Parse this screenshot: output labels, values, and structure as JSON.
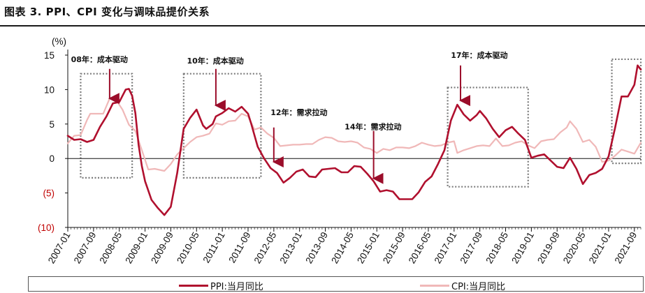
{
  "figure_title": "图表 3. PPI、CPI 变化与调味品提价关系",
  "chart_data": {
    "type": "line",
    "title": "图表 3. PPI、CPI 变化与调味品提价关系",
    "ylabel": "(%)",
    "ylim": [
      -10,
      15
    ],
    "yticks": [
      {
        "value": 15,
        "label": "15"
      },
      {
        "value": 10,
        "label": "10"
      },
      {
        "value": 5,
        "label": "5"
      },
      {
        "value": 0,
        "label": "0"
      },
      {
        "value": -5,
        "label": "(5)"
      },
      {
        "value": -10,
        "label": "(10)"
      }
    ],
    "x_start": "2007-01",
    "x_end": "2021-11",
    "xticks": [
      "2007-01",
      "2007-09",
      "2008-05",
      "2009-01",
      "2009-09",
      "2010-05",
      "2011-01",
      "2011-09",
      "2012-05",
      "2013-01",
      "2013-09",
      "2014-05",
      "2015-01",
      "2015-09",
      "2016-05",
      "2017-01",
      "2017-09",
      "2018-05",
      "2019-01",
      "2019-09",
      "2020-05",
      "2021-01",
      "2021-09"
    ],
    "series": [
      {
        "name": "PPI:当月同比",
        "color": "#b0102e",
        "points": [
          [
            "2007-01",
            3.3
          ],
          [
            "2007-03",
            2.7
          ],
          [
            "2007-05",
            2.8
          ],
          [
            "2007-07",
            2.4
          ],
          [
            "2007-09",
            2.7
          ],
          [
            "2007-11",
            4.6
          ],
          [
            "2008-01",
            6.1
          ],
          [
            "2008-03",
            8.0
          ],
          [
            "2008-05",
            8.2
          ],
          [
            "2008-07",
            10.0
          ],
          [
            "2008-08",
            10.1
          ],
          [
            "2008-09",
            9.1
          ],
          [
            "2008-10",
            6.6
          ],
          [
            "2008-11",
            2.0
          ],
          [
            "2008-12",
            -1.1
          ],
          [
            "2009-01",
            -3.3
          ],
          [
            "2009-03",
            -6.0
          ],
          [
            "2009-05",
            -7.2
          ],
          [
            "2009-07",
            -8.2
          ],
          [
            "2009-09",
            -7.0
          ],
          [
            "2009-11",
            -2.1
          ],
          [
            "2010-01",
            4.3
          ],
          [
            "2010-03",
            5.9
          ],
          [
            "2010-05",
            7.1
          ],
          [
            "2010-07",
            4.8
          ],
          [
            "2010-08",
            4.3
          ],
          [
            "2010-10",
            5.0
          ],
          [
            "2010-11",
            6.1
          ],
          [
            "2011-01",
            6.6
          ],
          [
            "2011-03",
            7.3
          ],
          [
            "2011-05",
            6.8
          ],
          [
            "2011-07",
            7.5
          ],
          [
            "2011-09",
            6.5
          ],
          [
            "2011-10",
            5.0
          ],
          [
            "2011-12",
            1.7
          ],
          [
            "2012-02",
            0.0
          ],
          [
            "2012-04",
            -1.4
          ],
          [
            "2012-06",
            -2.1
          ],
          [
            "2012-08",
            -3.5
          ],
          [
            "2012-10",
            -2.8
          ],
          [
            "2012-12",
            -1.9
          ],
          [
            "2013-02",
            -1.6
          ],
          [
            "2013-04",
            -2.6
          ],
          [
            "2013-06",
            -2.7
          ],
          [
            "2013-08",
            -1.6
          ],
          [
            "2013-10",
            -1.5
          ],
          [
            "2013-12",
            -1.4
          ],
          [
            "2014-02",
            -2.0
          ],
          [
            "2014-04",
            -2.0
          ],
          [
            "2014-06",
            -1.1
          ],
          [
            "2014-08",
            -1.2
          ],
          [
            "2014-10",
            -2.2
          ],
          [
            "2014-12",
            -3.3
          ],
          [
            "2015-02",
            -4.8
          ],
          [
            "2015-04",
            -4.6
          ],
          [
            "2015-06",
            -4.8
          ],
          [
            "2015-08",
            -5.9
          ],
          [
            "2015-10",
            -5.9
          ],
          [
            "2015-12",
            -5.9
          ],
          [
            "2016-02",
            -4.9
          ],
          [
            "2016-04",
            -3.4
          ],
          [
            "2016-06",
            -2.6
          ],
          [
            "2016-08",
            -0.8
          ],
          [
            "2016-10",
            1.2
          ],
          [
            "2016-12",
            5.5
          ],
          [
            "2017-02",
            7.8
          ],
          [
            "2017-04",
            6.4
          ],
          [
            "2017-06",
            5.5
          ],
          [
            "2017-08",
            6.3
          ],
          [
            "2017-09",
            6.9
          ],
          [
            "2017-11",
            5.8
          ],
          [
            "2018-01",
            4.3
          ],
          [
            "2018-03",
            3.1
          ],
          [
            "2018-05",
            4.1
          ],
          [
            "2018-07",
            4.6
          ],
          [
            "2018-09",
            3.6
          ],
          [
            "2018-11",
            2.7
          ],
          [
            "2019-01",
            0.1
          ],
          [
            "2019-03",
            0.4
          ],
          [
            "2019-05",
            0.6
          ],
          [
            "2019-07",
            -0.3
          ],
          [
            "2019-09",
            -1.2
          ],
          [
            "2019-11",
            -1.4
          ],
          [
            "2020-01",
            0.1
          ],
          [
            "2020-03",
            -1.5
          ],
          [
            "2020-05",
            -3.7
          ],
          [
            "2020-07",
            -2.4
          ],
          [
            "2020-09",
            -2.1
          ],
          [
            "2020-11",
            -1.5
          ],
          [
            "2021-01",
            0.3
          ],
          [
            "2021-03",
            4.4
          ],
          [
            "2021-05",
            9.0
          ],
          [
            "2021-07",
            9.0
          ],
          [
            "2021-09",
            10.7
          ],
          [
            "2021-10",
            13.5
          ],
          [
            "2021-11",
            12.9
          ]
        ]
      },
      {
        "name": "CPI:当月同比",
        "color": "#f0b8b8",
        "points": [
          [
            "2007-01",
            2.2
          ],
          [
            "2007-03",
            3.3
          ],
          [
            "2007-05",
            3.4
          ],
          [
            "2007-07",
            5.6
          ],
          [
            "2007-08",
            6.5
          ],
          [
            "2007-10",
            6.5
          ],
          [
            "2007-12",
            6.5
          ],
          [
            "2008-02",
            8.7
          ],
          [
            "2008-04",
            8.5
          ],
          [
            "2008-06",
            7.1
          ],
          [
            "2008-08",
            4.9
          ],
          [
            "2008-10",
            4.0
          ],
          [
            "2008-12",
            1.2
          ],
          [
            "2009-02",
            -1.6
          ],
          [
            "2009-04",
            -1.5
          ],
          [
            "2009-06",
            -1.7
          ],
          [
            "2009-07",
            -1.8
          ],
          [
            "2009-09",
            -0.8
          ],
          [
            "2009-11",
            0.6
          ],
          [
            "2010-01",
            1.5
          ],
          [
            "2010-03",
            2.4
          ],
          [
            "2010-05",
            3.1
          ],
          [
            "2010-07",
            3.3
          ],
          [
            "2010-09",
            3.6
          ],
          [
            "2010-11",
            5.1
          ],
          [
            "2011-01",
            4.9
          ],
          [
            "2011-03",
            5.4
          ],
          [
            "2011-05",
            5.5
          ],
          [
            "2011-07",
            6.5
          ],
          [
            "2011-09",
            6.1
          ],
          [
            "2011-11",
            4.2
          ],
          [
            "2012-01",
            4.5
          ],
          [
            "2012-03",
            3.6
          ],
          [
            "2012-05",
            3.0
          ],
          [
            "2012-07",
            1.8
          ],
          [
            "2012-09",
            1.9
          ],
          [
            "2012-11",
            2.0
          ],
          [
            "2013-01",
            2.0
          ],
          [
            "2013-03",
            2.1
          ],
          [
            "2013-05",
            2.1
          ],
          [
            "2013-07",
            2.7
          ],
          [
            "2013-09",
            3.1
          ],
          [
            "2013-11",
            3.0
          ],
          [
            "2014-01",
            2.5
          ],
          [
            "2014-03",
            2.4
          ],
          [
            "2014-05",
            2.5
          ],
          [
            "2014-07",
            2.3
          ],
          [
            "2014-09",
            1.6
          ],
          [
            "2014-11",
            1.4
          ],
          [
            "2015-01",
            0.8
          ],
          [
            "2015-03",
            1.4
          ],
          [
            "2015-05",
            1.2
          ],
          [
            "2015-07",
            1.6
          ],
          [
            "2015-09",
            1.6
          ],
          [
            "2015-11",
            1.5
          ],
          [
            "2016-01",
            1.8
          ],
          [
            "2016-03",
            2.3
          ],
          [
            "2016-05",
            2.0
          ],
          [
            "2016-07",
            1.8
          ],
          [
            "2016-09",
            1.9
          ],
          [
            "2016-11",
            2.3
          ],
          [
            "2017-01",
            2.5
          ],
          [
            "2017-02",
            0.8
          ],
          [
            "2017-04",
            1.2
          ],
          [
            "2017-06",
            1.5
          ],
          [
            "2017-08",
            1.8
          ],
          [
            "2017-10",
            1.9
          ],
          [
            "2017-12",
            1.8
          ],
          [
            "2018-02",
            2.9
          ],
          [
            "2018-04",
            1.8
          ],
          [
            "2018-06",
            1.9
          ],
          [
            "2018-08",
            2.3
          ],
          [
            "2018-10",
            2.5
          ],
          [
            "2018-12",
            1.9
          ],
          [
            "2019-02",
            1.5
          ],
          [
            "2019-04",
            2.5
          ],
          [
            "2019-06",
            2.7
          ],
          [
            "2019-08",
            2.8
          ],
          [
            "2019-10",
            3.8
          ],
          [
            "2019-12",
            4.5
          ],
          [
            "2020-01",
            5.4
          ],
          [
            "2020-03",
            4.3
          ],
          [
            "2020-05",
            2.4
          ],
          [
            "2020-07",
            2.7
          ],
          [
            "2020-09",
            1.7
          ],
          [
            "2020-11",
            -0.5
          ],
          [
            "2021-01",
            -0.3
          ],
          [
            "2021-03",
            0.4
          ],
          [
            "2021-05",
            1.3
          ],
          [
            "2021-07",
            1.0
          ],
          [
            "2021-09",
            0.7
          ],
          [
            "2021-10",
            1.5
          ],
          [
            "2021-11",
            2.3
          ]
        ]
      }
    ],
    "boxes": [
      {
        "from": "2007-05",
        "to": "2008-09",
        "ymin": -2.8,
        "ymax": 12.3
      },
      {
        "from": "2010-01",
        "to": "2012-01",
        "ymin": -2.8,
        "ymax": 12.3
      },
      {
        "from": "2016-11",
        "to": "2018-12",
        "ymin": -4.1,
        "ymax": 10.3
      },
      {
        "from": "2021-02",
        "to": "2021-11",
        "ymin": -0.7,
        "ymax": 14.4
      }
    ],
    "annotations": [
      {
        "text": "08年：成本驱动",
        "x": "2007-02",
        "y": 14.0,
        "arrow_x": "2008-02",
        "arrow_from": 13.0,
        "arrow_to": 8.0
      },
      {
        "text": "10年：成本驱动",
        "x": "2010-02",
        "y": 13.8,
        "arrow_x": "2010-11",
        "arrow_from": 13.0,
        "arrow_to": 7.0
      },
      {
        "text": "12年：需求拉动",
        "x": "2012-04",
        "y": 6.3,
        "arrow_x": "2012-05",
        "arrow_from": 4.5,
        "arrow_to": -1.2
      },
      {
        "text": "14年：需求拉动",
        "x": "2014-03",
        "y": 4.2,
        "arrow_x": "2014-12",
        "arrow_from": 4.0,
        "arrow_to": -3.6
      },
      {
        "text": "17年：成本驱动",
        "x": "2016-12",
        "y": 14.6,
        "arrow_x": "2017-03",
        "arrow_from": 13.5,
        "arrow_to": 7.7
      }
    ]
  }
}
